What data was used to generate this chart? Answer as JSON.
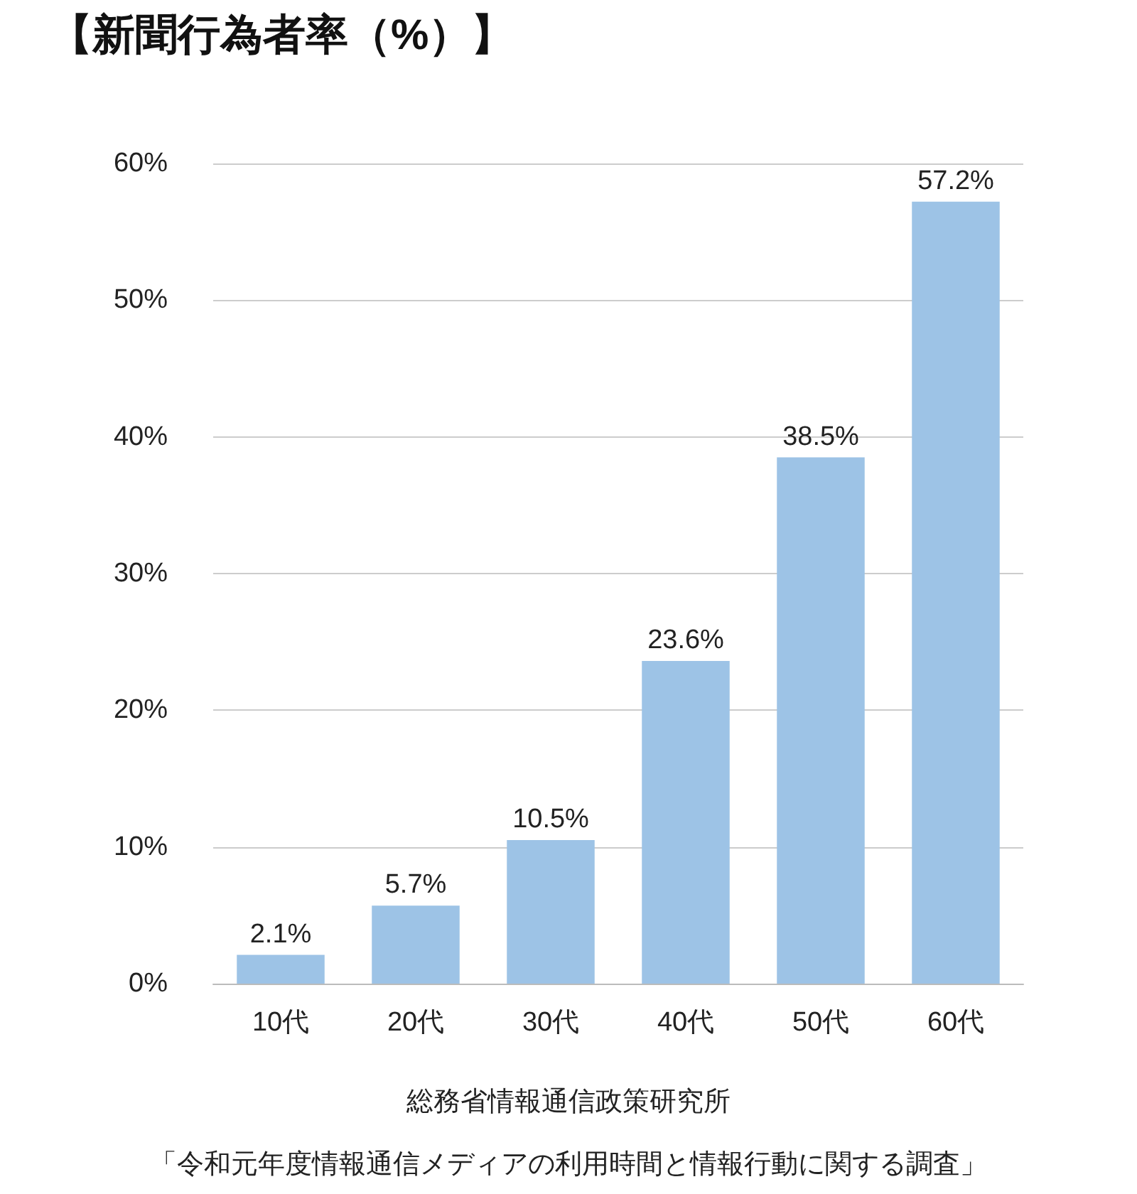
{
  "chart_data": {
    "type": "bar",
    "title": "【新聞行為者率（%）】",
    "categories": [
      "10代",
      "20代",
      "30代",
      "40代",
      "50代",
      "60代"
    ],
    "values": [
      2.1,
      5.7,
      10.5,
      23.6,
      38.5,
      57.2
    ],
    "value_labels": [
      "2.1%",
      "5.7%",
      "10.5%",
      "23.6%",
      "38.5%",
      "57.2%"
    ],
    "color": "#9dc3e6",
    "ylim": [
      0,
      60
    ],
    "yticks": [
      {
        "value": 0,
        "label": "0%"
      },
      {
        "value": 10,
        "label": "10%"
      },
      {
        "value": 20,
        "label": "20%"
      },
      {
        "value": 30,
        "label": "30%"
      },
      {
        "value": 40,
        "label": "40%"
      },
      {
        "value": 50,
        "label": "50%"
      },
      {
        "value": 60,
        "label": "60%"
      }
    ],
    "grid": "y",
    "annotations": [
      "総務省情報通信政策研究所",
      "「令和元年度情報通信メディアの利用時間と情報行動に関する調査」"
    ]
  }
}
